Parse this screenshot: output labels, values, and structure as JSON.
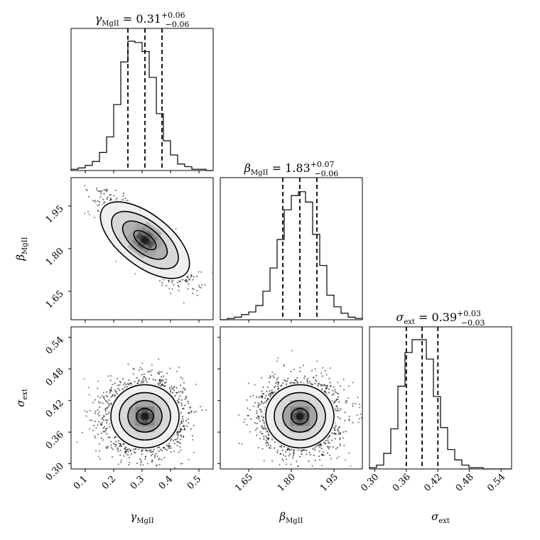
{
  "chart_data": {
    "type": "corner",
    "parameters": [
      {
        "key": "gamma",
        "symbol": "γ",
        "sub": "MgII",
        "title_value": "0.31",
        "err_plus": "+0.06",
        "err_minus": "−0.06",
        "ticks": [
          0.1,
          0.2,
          0.3,
          0.4,
          0.5
        ],
        "tick_labels": [
          "0.1",
          "0.2",
          "0.3",
          "0.4",
          "0.5"
        ],
        "lim": [
          0.05,
          0.55
        ],
        "quantiles": [
          0.25,
          0.31,
          0.37
        ],
        "hist": [
          0.01,
          0.02,
          0.04,
          0.07,
          0.14,
          0.26,
          0.51,
          0.84,
          1.0,
          0.99,
          0.92,
          0.72,
          0.44,
          0.23,
          0.12,
          0.05,
          0.03,
          0.01,
          0.01,
          0.0
        ]
      },
      {
        "key": "beta",
        "symbol": "β",
        "sub": "MgII",
        "title_value": "1.83",
        "err_plus": "+0.07",
        "err_minus": "−0.06",
        "ticks": [
          1.65,
          1.8,
          1.95
        ],
        "tick_labels": [
          "1.65",
          "1.80",
          "1.95"
        ],
        "lim": [
          1.55,
          2.05
        ],
        "quantiles": [
          1.77,
          1.83,
          1.89
        ],
        "hist": [
          0.0,
          0.01,
          0.02,
          0.04,
          0.06,
          0.11,
          0.22,
          0.4,
          0.62,
          0.85,
          0.96,
          0.99,
          0.91,
          0.66,
          0.42,
          0.19,
          0.1,
          0.05,
          0.02,
          0.01
        ]
      },
      {
        "key": "sigma",
        "symbol": "σ",
        "sub": "ext",
        "title_value": "0.39",
        "err_plus": "+0.03",
        "err_minus": "−0.03",
        "ticks": [
          0.3,
          0.36,
          0.42,
          0.48,
          0.54
        ],
        "tick_labels": [
          "0.30",
          "0.36",
          "0.42",
          "0.48",
          "0.54"
        ],
        "lim": [
          0.29,
          0.56
        ],
        "quantiles": [
          0.36,
          0.39,
          0.42
        ],
        "hist": [
          0.01,
          0.03,
          0.12,
          0.31,
          0.64,
          0.9,
          1.0,
          1.0,
          0.85,
          0.56,
          0.32,
          0.15,
          0.07,
          0.03,
          0.01,
          0.01,
          0.0,
          0.0,
          0.0,
          0.0
        ]
      }
    ],
    "pairs": [
      {
        "x": "gamma",
        "y": "beta",
        "correlation": -0.82
      },
      {
        "x": "gamma",
        "y": "sigma",
        "correlation": 0.0
      },
      {
        "x": "beta",
        "y": "sigma",
        "correlation": 0.0
      }
    ],
    "contour_levels": [
      0.5,
      1.0,
      1.5,
      2.0
    ],
    "colors": {
      "line": "#000000",
      "background": "#ffffff"
    }
  }
}
